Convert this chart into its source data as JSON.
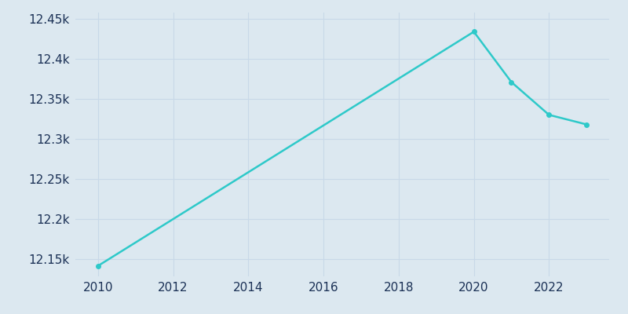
{
  "years": [
    2010,
    2020,
    2021,
    2022,
    2023
  ],
  "population": [
    12141,
    12434,
    12371,
    12330,
    12318
  ],
  "line_color": "#2ec9c9",
  "marker_color": "#2ec9c9",
  "background_color": "#dce8f0",
  "plot_bg_color": "#dce8f0",
  "grid_color": "#c8d8e8",
  "tick_label_color": "#1a3055",
  "xlim": [
    2009.4,
    2023.6
  ],
  "ylim": [
    12128,
    12458
  ],
  "ytick_values": [
    12150,
    12200,
    12250,
    12300,
    12350,
    12400,
    12450
  ],
  "xtick_values": [
    2010,
    2012,
    2014,
    2016,
    2018,
    2020,
    2022
  ],
  "line_width": 1.8,
  "marker_size": 4,
  "marker_years": [
    2010,
    2021,
    2022,
    2023
  ]
}
